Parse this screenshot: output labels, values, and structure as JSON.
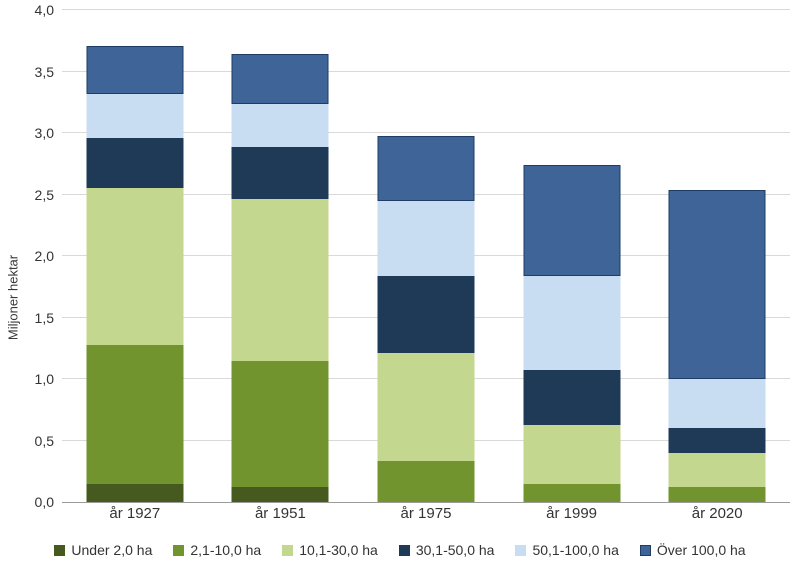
{
  "chart_data": {
    "type": "bar",
    "variant": "stacked",
    "title": "",
    "ylabel": "Miljoner hektar",
    "xlabel": "",
    "categories": [
      "år 1927",
      "år 1951",
      "år 1975",
      "år 1999",
      "år 2020"
    ],
    "series": [
      {
        "name": "Under 2,0 ha",
        "color": "#46591f",
        "values": [
          0.15,
          0.12,
          0.0,
          0.0,
          0.0
        ]
      },
      {
        "name": "2,1-10,0 ha",
        "color": "#71942f",
        "values": [
          1.13,
          1.03,
          0.33,
          0.15,
          0.12
        ]
      },
      {
        "name": "10,1-30,0 ha",
        "color": "#c4d78e",
        "values": [
          1.27,
          1.31,
          0.88,
          0.48,
          0.28
        ]
      },
      {
        "name": "30,1-50,0 ha",
        "color": "#1f3a57",
        "values": [
          0.41,
          0.43,
          0.63,
          0.44,
          0.2
        ]
      },
      {
        "name": "50,1-100,0 ha",
        "color": "#c8dcf2",
        "values": [
          0.36,
          0.35,
          0.61,
          0.77,
          0.4
        ]
      },
      {
        "name": "Över 100,0 ha",
        "color": "#3e6498",
        "border_color": "#1e3c64",
        "values": [
          0.39,
          0.4,
          0.53,
          0.9,
          1.54
        ]
      }
    ],
    "totals": [
      3.71,
      3.64,
      2.98,
      2.74,
      2.54
    ],
    "ylim": [
      0,
      4.0
    ],
    "y_ticks": [
      "0,0",
      "0,5",
      "1,0",
      "1,5",
      "2,0",
      "2,5",
      "3,0",
      "3,5",
      "4,0"
    ],
    "y_tick_values": [
      0,
      0.5,
      1.0,
      1.5,
      2.0,
      2.5,
      3.0,
      3.5,
      4.0
    ],
    "grid": true,
    "legend_position": "bottom",
    "colors": {
      "grid_line": "#d9d9d9",
      "axis_line": "#9b9b9b",
      "text": "#333333"
    }
  }
}
